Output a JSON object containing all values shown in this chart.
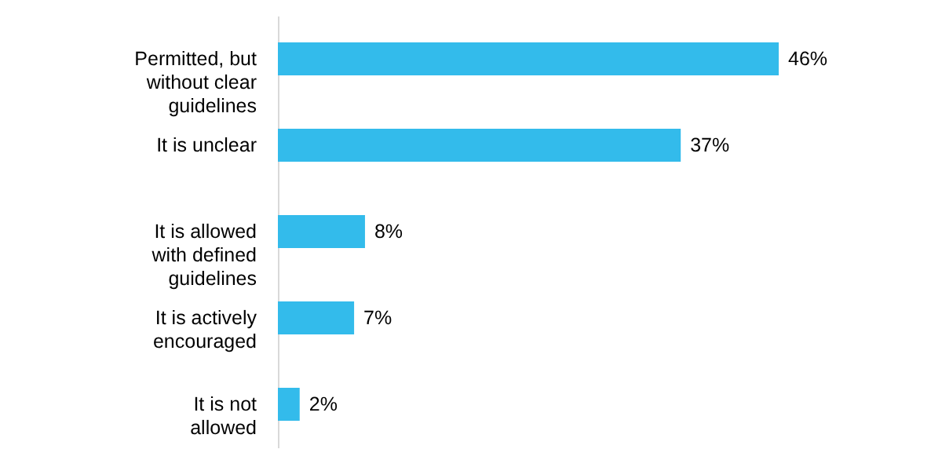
{
  "chart_data": {
    "type": "bar",
    "orientation": "horizontal",
    "categories": [
      "Permitted, but without clear guidelines",
      "It is unclear",
      "It is allowed with defined guidelines",
      "It is actively encouraged",
      "It is not allowed"
    ],
    "values": [
      46,
      37,
      8,
      7,
      2
    ],
    "value_labels": [
      "46%",
      "37%",
      "8%",
      "7%",
      "2%"
    ],
    "color": "#33bbeb"
  }
}
